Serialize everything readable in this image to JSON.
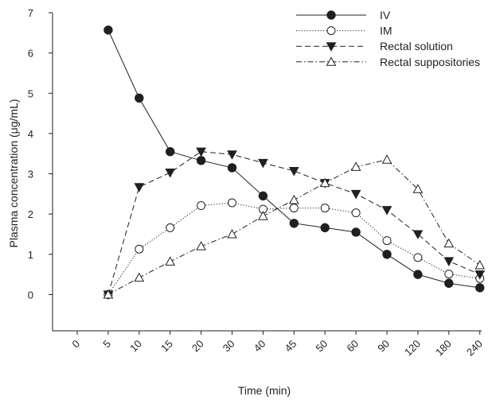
{
  "chart_data": {
    "type": "line",
    "title": "",
    "xlabel": "Time (min)",
    "ylabel": "Plasma concentration (μg/mL)",
    "ylim": [
      -0.9,
      7
    ],
    "yticks": [
      0,
      1,
      2,
      3,
      4,
      5,
      6,
      7
    ],
    "categories": [
      "0",
      "5",
      "10",
      "15",
      "20",
      "30",
      "40",
      "45",
      "50",
      "60",
      "90",
      "120",
      "180",
      "240"
    ],
    "grid": false,
    "legend_position": "top-right",
    "series": [
      {
        "name": "IV",
        "line_style": "solid",
        "marker": "filled-circle",
        "values": [
          null,
          6.57,
          4.88,
          3.55,
          3.33,
          3.15,
          2.45,
          1.77,
          1.66,
          1.55,
          1.0,
          0.5,
          0.28,
          0.17
        ]
      },
      {
        "name": "IM",
        "line_style": "dotted",
        "marker": "open-circle",
        "values": [
          null,
          0.0,
          1.13,
          1.66,
          2.21,
          2.28,
          2.12,
          2.15,
          2.15,
          2.03,
          1.34,
          0.92,
          0.51,
          0.4
        ]
      },
      {
        "name": "Rectal solution",
        "line_style": "dashed",
        "marker": "filled-triangle-down",
        "values": [
          null,
          0.0,
          2.67,
          3.03,
          3.55,
          3.48,
          3.27,
          3.07,
          2.77,
          2.5,
          2.1,
          1.5,
          0.83,
          0.5
        ]
      },
      {
        "name": "Rectal suppositories",
        "line_style": "dash-dot",
        "marker": "open-triangle-up",
        "values": [
          null,
          0.0,
          0.42,
          0.82,
          1.2,
          1.5,
          1.95,
          2.35,
          2.77,
          3.17,
          3.35,
          2.62,
          1.27,
          0.73
        ]
      }
    ]
  }
}
